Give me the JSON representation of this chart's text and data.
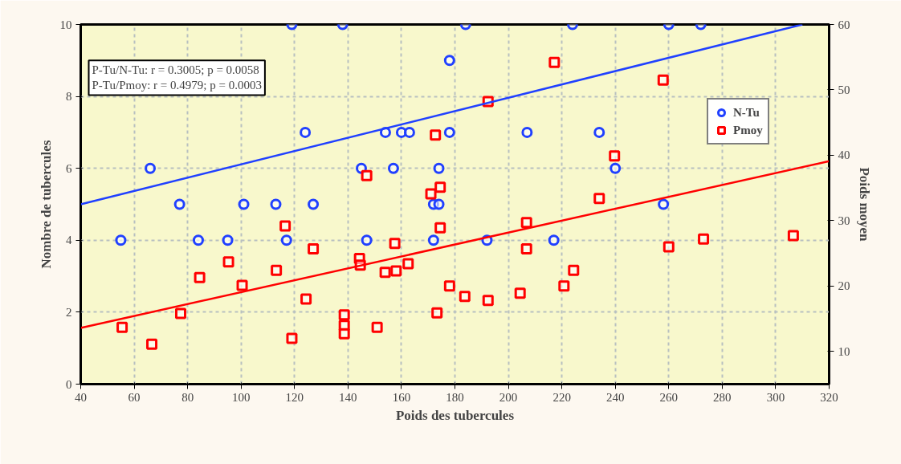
{
  "chart_data": {
    "type": "scatter",
    "xlabel": "Poids des tubercules",
    "ylabel": "Nombre de tubercules",
    "y2label": "Poids moyen",
    "annotations": [
      "P-Tu/N-Tu: r = 0.3005; p = 0.0058",
      "P-Tu/Pmoy: r = 0.4979; p = 0.0003"
    ],
    "xlim": [
      40,
      320
    ],
    "xticks": [
      40,
      60,
      80,
      100,
      120,
      140,
      160,
      180,
      200,
      220,
      240,
      260,
      280,
      300,
      320
    ],
    "ylim": [
      0,
      10
    ],
    "yticks": [
      0,
      2,
      4,
      6,
      8,
      10
    ],
    "y2lim": [
      5,
      60
    ],
    "y2ticks": [
      10,
      20,
      30,
      40,
      50,
      60
    ],
    "grid": true,
    "legend": "top right",
    "series": [
      {
        "name": "N-Tu",
        "color": "#2040ff",
        "marker": "circle",
        "x": [
          55,
          66,
          77,
          84,
          95,
          101,
          113,
          117,
          119,
          124,
          127,
          138,
          145,
          147,
          154,
          157,
          160,
          163,
          172,
          172,
          174,
          174,
          178,
          178,
          184,
          192,
          207,
          217,
          224,
          234,
          240,
          258,
          260,
          272
        ],
        "values": [
          4,
          6,
          5,
          4,
          4,
          5,
          5,
          4,
          10,
          7,
          5,
          10,
          6,
          4,
          7,
          6,
          7,
          7,
          5,
          4,
          5,
          6,
          7,
          9,
          10,
          4,
          7,
          4,
          10,
          7,
          6,
          5,
          10,
          10
        ]
      },
      {
        "name": "Pmoy",
        "color": "#ff0000",
        "marker": "square",
        "axis": "y2",
        "x": [
          55.5,
          66.6,
          77.4,
          84.5,
          95.3,
          100.4,
          113.2,
          116.5,
          119,
          124.3,
          127,
          138.6,
          138.6,
          138.6,
          144.3,
          144.6,
          147,
          150.9,
          153.9,
          157.5,
          158,
          162.5,
          171,
          172.7,
          173.3,
          174.5,
          174.5,
          178,
          183.7,
          192.4,
          192.4,
          204.4,
          206.8,
          206.8,
          217.2,
          220.8,
          224.4,
          234,
          239.7,
          257.9,
          260,
          273,
          306.6
        ],
        "values": [
          13.7,
          11.1,
          15.8,
          21.3,
          23.7,
          20.1,
          22.4,
          29.2,
          12.0,
          18.0,
          25.7,
          15.6,
          14.0,
          12.7,
          24.2,
          23.2,
          36.9,
          13.7,
          22.1,
          26.5,
          22.3,
          23.4,
          34.1,
          43.1,
          15.9,
          35.1,
          28.9,
          20.0,
          18.4,
          17.8,
          48.2,
          18.9,
          29.7,
          25.7,
          54.2,
          20.0,
          22.4,
          33.4,
          39.9,
          51.5,
          26.0,
          27.2,
          27.7
        ]
      },
      {
        "type": "line",
        "color": "#2040ff",
        "x": [
          40,
          310
        ],
        "values": [
          5.0,
          10.0
        ]
      },
      {
        "type": "line",
        "color": "#ff0000",
        "axis": "y2",
        "x": [
          40,
          320
        ],
        "values": [
          13.6,
          39.1
        ]
      }
    ]
  }
}
